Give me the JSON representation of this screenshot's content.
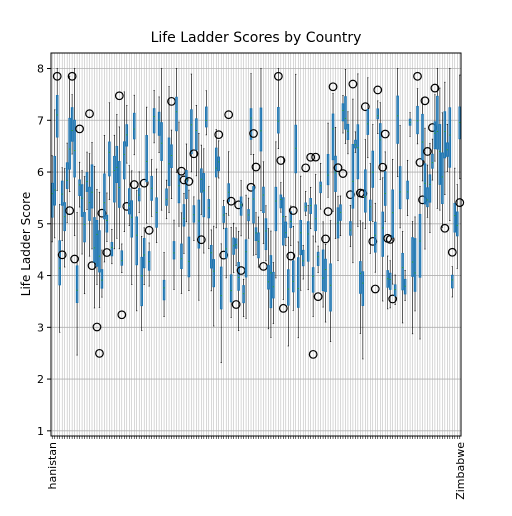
{
  "chart_data": {
    "type": "box",
    "title": "Life Ladder Scores by Country",
    "xlabel": "",
    "ylabel": "Life Ladder Score",
    "ylim": [
      0.9,
      8.3
    ],
    "yticks": [
      1,
      2,
      3,
      4,
      5,
      6,
      7,
      8
    ],
    "grid": true,
    "box_color": "#1f77b4",
    "whisker_color": "#000000",
    "median_color": "#2ca02c",
    "outlier_color": "#000000",
    "first_category": "Afghanistan",
    "last_category": "Zimbabwe",
    "num_categories": 165,
    "visible_tick_fragments": [
      "hanistan",
      "Zimbabwe"
    ]
  }
}
